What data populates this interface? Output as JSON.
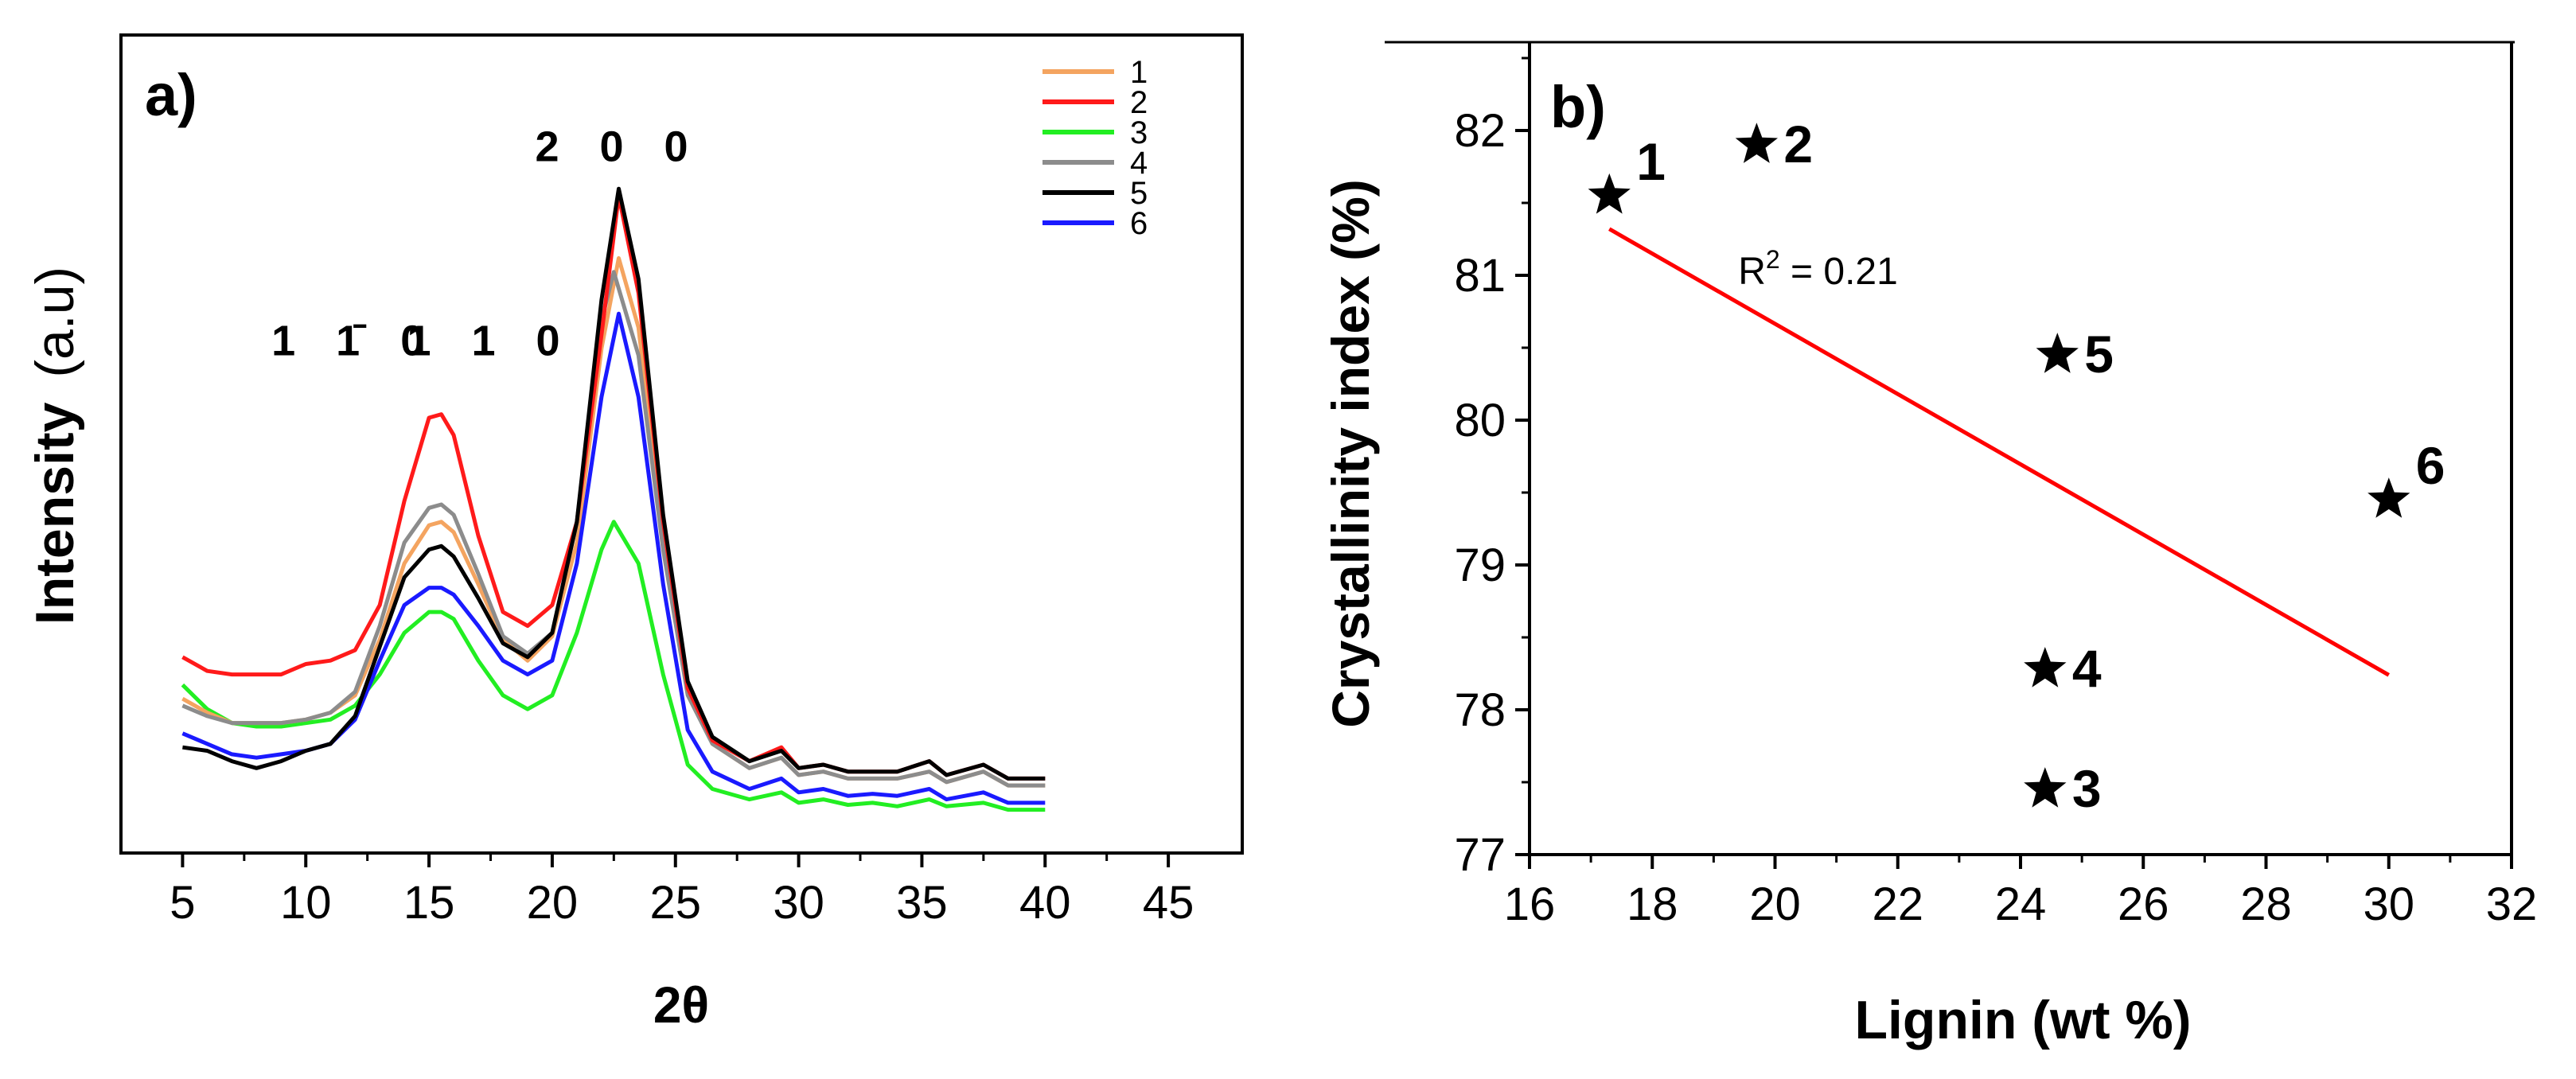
{
  "chart_data": [
    {
      "panel": "a)",
      "type": "line",
      "xlabel": "2θ",
      "ylabel": "Intensity",
      "ylabel_unit": "(a.u)",
      "xlim": [
        2.5,
        48
      ],
      "ylim": [
        0,
        1
      ],
      "xticks": [
        "5",
        "10",
        "15",
        "20",
        "25",
        "30",
        "35",
        "40",
        "45"
      ],
      "xtick_values": [
        5,
        10,
        15,
        20,
        25,
        30,
        35,
        40,
        45
      ],
      "peak_labels": [
        {
          "text": "1 1̄ 0",
          "x": 12.0,
          "y": 0.66
        },
        {
          "text": "1 1 0",
          "x": 17.5,
          "y": 0.66
        },
        {
          "text": "2 0 0",
          "x": 22.7,
          "y": 0.94
        }
      ],
      "legend": {
        "position": "top-right",
        "entries": [
          "1",
          "2",
          "3",
          "4",
          "5",
          "6"
        ]
      },
      "series": [
        {
          "name": "1",
          "color": "#F4A460",
          "x": [
            5,
            6,
            7,
            8,
            9,
            10,
            11,
            12,
            13,
            14,
            15,
            15.5,
            16,
            17,
            18,
            19,
            20,
            21,
            22,
            22.7,
            23.5,
            24.5,
            25.5,
            26.5,
            28,
            29.3,
            30,
            31,
            32,
            33,
            34,
            35.3,
            36,
            37.5,
            38.5,
            40
          ],
          "y": [
            0.165,
            0.145,
            0.13,
            0.13,
            0.13,
            0.135,
            0.145,
            0.17,
            0.25,
            0.36,
            0.415,
            0.42,
            0.405,
            0.33,
            0.25,
            0.22,
            0.255,
            0.39,
            0.67,
            0.8,
            0.7,
            0.4,
            0.18,
            0.1,
            0.065,
            0.08,
            0.055,
            0.06,
            0.05,
            0.05,
            0.05,
            0.06,
            0.045,
            0.06,
            0.04,
            0.04
          ]
        },
        {
          "name": "2",
          "color": "#FF1A1A",
          "x": [
            5,
            6,
            7,
            8,
            9,
            10,
            11,
            12,
            13,
            14,
            15,
            15.5,
            16,
            17,
            18,
            19,
            20,
            21,
            22,
            22.7,
            23.5,
            24.5,
            25.5,
            26.5,
            28,
            29.3,
            30,
            31,
            32,
            33,
            34,
            35.3,
            36,
            37.5,
            38.5,
            40
          ],
          "y": [
            0.225,
            0.205,
            0.2,
            0.2,
            0.2,
            0.215,
            0.22,
            0.235,
            0.3,
            0.45,
            0.57,
            0.575,
            0.545,
            0.4,
            0.29,
            0.27,
            0.3,
            0.42,
            0.69,
            0.89,
            0.75,
            0.42,
            0.18,
            0.105,
            0.075,
            0.095,
            0.065,
            0.07,
            0.06,
            0.06,
            0.06,
            0.075,
            0.055,
            0.07,
            0.05,
            0.05
          ]
        },
        {
          "name": "3",
          "color": "#22EE22",
          "x": [
            5,
            6,
            7,
            8,
            9,
            10,
            11,
            12,
            13,
            14,
            15,
            15.5,
            16,
            17,
            18,
            19,
            20,
            21,
            22,
            22.5,
            23.5,
            24.5,
            25.5,
            26.5,
            28,
            29.3,
            30,
            31,
            32,
            33,
            34,
            35.3,
            36,
            37.5,
            38.5,
            40
          ],
          "y": [
            0.185,
            0.15,
            0.13,
            0.125,
            0.125,
            0.13,
            0.135,
            0.155,
            0.2,
            0.26,
            0.29,
            0.29,
            0.28,
            0.22,
            0.17,
            0.15,
            0.17,
            0.26,
            0.38,
            0.42,
            0.36,
            0.2,
            0.07,
            0.035,
            0.02,
            0.03,
            0.015,
            0.02,
            0.012,
            0.015,
            0.01,
            0.02,
            0.01,
            0.015,
            0.005,
            0.005
          ]
        },
        {
          "name": "4",
          "color": "#8C8C8C",
          "x": [
            5,
            6,
            7,
            8,
            9,
            10,
            11,
            12,
            13,
            14,
            15,
            15.5,
            16,
            17,
            18,
            19,
            20,
            21,
            22,
            22.5,
            23.5,
            24.5,
            25.5,
            26.5,
            28,
            29.3,
            30,
            31,
            32,
            33,
            34,
            35.3,
            36,
            37.5,
            38.5,
            40
          ],
          "y": [
            0.155,
            0.14,
            0.13,
            0.13,
            0.13,
            0.135,
            0.145,
            0.175,
            0.27,
            0.39,
            0.44,
            0.445,
            0.43,
            0.345,
            0.255,
            0.23,
            0.26,
            0.42,
            0.71,
            0.78,
            0.66,
            0.38,
            0.17,
            0.1,
            0.065,
            0.08,
            0.055,
            0.06,
            0.05,
            0.05,
            0.05,
            0.06,
            0.045,
            0.06,
            0.04,
            0.04
          ]
        },
        {
          "name": "5",
          "color": "#000000",
          "x": [
            5,
            6,
            7,
            8,
            9,
            10,
            11,
            12,
            13,
            14,
            15,
            15.5,
            16,
            17,
            18,
            19,
            20,
            21,
            22,
            22.7,
            23.5,
            24.5,
            25.5,
            26.5,
            28,
            29.3,
            30,
            31,
            32,
            33,
            34,
            35.3,
            36,
            37.5,
            38.5,
            40
          ],
          "y": [
            0.095,
            0.09,
            0.075,
            0.065,
            0.075,
            0.09,
            0.1,
            0.14,
            0.24,
            0.34,
            0.38,
            0.385,
            0.37,
            0.31,
            0.245,
            0.225,
            0.26,
            0.42,
            0.74,
            0.9,
            0.77,
            0.43,
            0.19,
            0.11,
            0.075,
            0.09,
            0.065,
            0.07,
            0.06,
            0.06,
            0.06,
            0.075,
            0.055,
            0.07,
            0.05,
            0.05
          ]
        },
        {
          "name": "6",
          "color": "#1A1AFF",
          "x": [
            5,
            6,
            7,
            8,
            9,
            10,
            11,
            12,
            13,
            14,
            15,
            15.5,
            16,
            17,
            18,
            19,
            20,
            21,
            22,
            22.7,
            23.5,
            24.5,
            25.5,
            26.5,
            28,
            29.3,
            30,
            31,
            32,
            33,
            34,
            35.3,
            36,
            37.5,
            38.5,
            40
          ],
          "y": [
            0.115,
            0.1,
            0.085,
            0.08,
            0.085,
            0.09,
            0.1,
            0.135,
            0.22,
            0.3,
            0.325,
            0.325,
            0.315,
            0.27,
            0.22,
            0.2,
            0.22,
            0.36,
            0.6,
            0.72,
            0.6,
            0.33,
            0.12,
            0.06,
            0.035,
            0.05,
            0.03,
            0.035,
            0.025,
            0.028,
            0.025,
            0.035,
            0.02,
            0.03,
            0.015,
            0.015
          ]
        }
      ]
    },
    {
      "panel": "b)",
      "type": "scatter",
      "xlabel": "Lignin (wt %)",
      "ylabel": "Crystallinity index (%)",
      "xlim": [
        16,
        32
      ],
      "ylim": [
        77,
        82.5
      ],
      "xticks": [
        "16",
        "18",
        "20",
        "22",
        "24",
        "26",
        "28",
        "30",
        "32"
      ],
      "xtick_values": [
        16,
        18,
        20,
        22,
        24,
        26,
        28,
        30,
        32
      ],
      "yticks": [
        "77",
        "78",
        "79",
        "80",
        "81",
        "82"
      ],
      "ytick_values": [
        77,
        78,
        79,
        80,
        81,
        82
      ],
      "marker": "star",
      "points": [
        {
          "label": "1",
          "x": 17.3,
          "y": 81.55
        },
        {
          "label": "2",
          "x": 19.7,
          "y": 81.9
        },
        {
          "label": "3",
          "x": 24.4,
          "y": 77.45
        },
        {
          "label": "4",
          "x": 24.4,
          "y": 78.28
        },
        {
          "label": "5",
          "x": 24.6,
          "y": 80.45
        },
        {
          "label": "6",
          "x": 30.0,
          "y": 79.45
        }
      ],
      "fit": {
        "x": [
          17.3,
          30.0
        ],
        "y": [
          81.32,
          78.24
        ],
        "color": "#FF0000"
      },
      "annotation": {
        "prefix": "R",
        "sup": "2",
        "suffix": " = 0.21",
        "x": 19.4,
        "y": 80.94
      }
    }
  ]
}
